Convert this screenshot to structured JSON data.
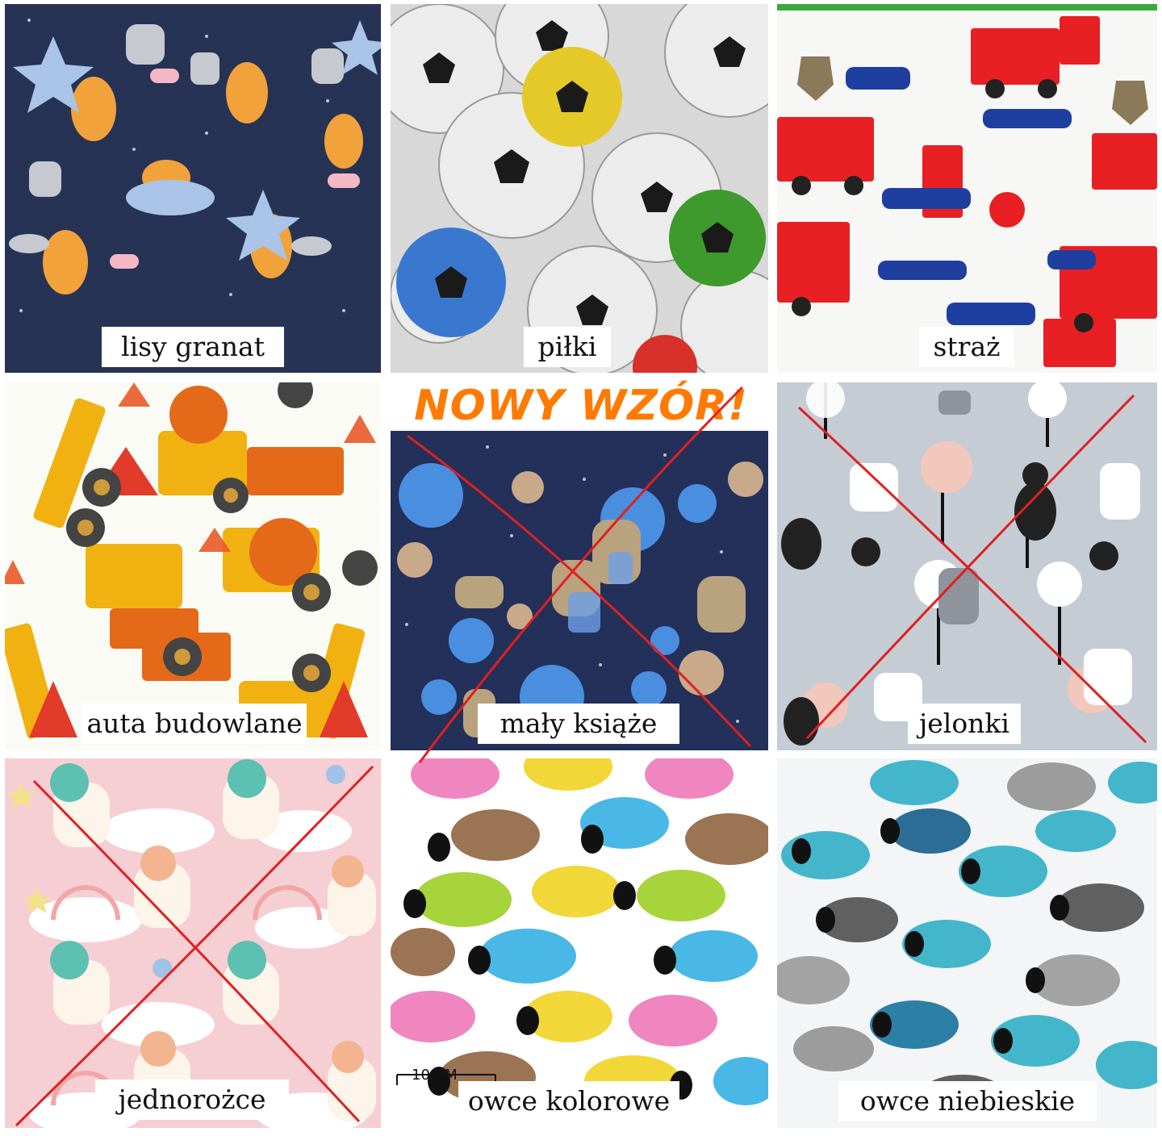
{
  "title_banner": "NOWY WZÓR!",
  "scale_label": "10 CM",
  "tiles": [
    {
      "label": "lisy granat",
      "crossed": false,
      "bg": "#263355"
    },
    {
      "label": "piłki",
      "crossed": false,
      "bg": "#d8d8d8"
    },
    {
      "label": "straż",
      "crossed": false,
      "bg": "#f7f7f5"
    },
    {
      "label": "auta budowlane",
      "crossed": false,
      "bg": "#fbfbf6"
    },
    {
      "label": "mały książe",
      "crossed": true,
      "bg": "#23305a"
    },
    {
      "label": "jelonki",
      "crossed": true,
      "bg": "#c5ccd4"
    },
    {
      "label": "jednorożce",
      "crossed": true,
      "bg": "#f6cfd4"
    },
    {
      "label": "owce kolorowe",
      "crossed": false,
      "bg": "#ffffff"
    },
    {
      "label": "owce niebieskie",
      "crossed": false,
      "bg": "#f3f5f6"
    }
  ],
  "colors": {
    "cross": "#e02020",
    "banner": "#ff7a00"
  }
}
